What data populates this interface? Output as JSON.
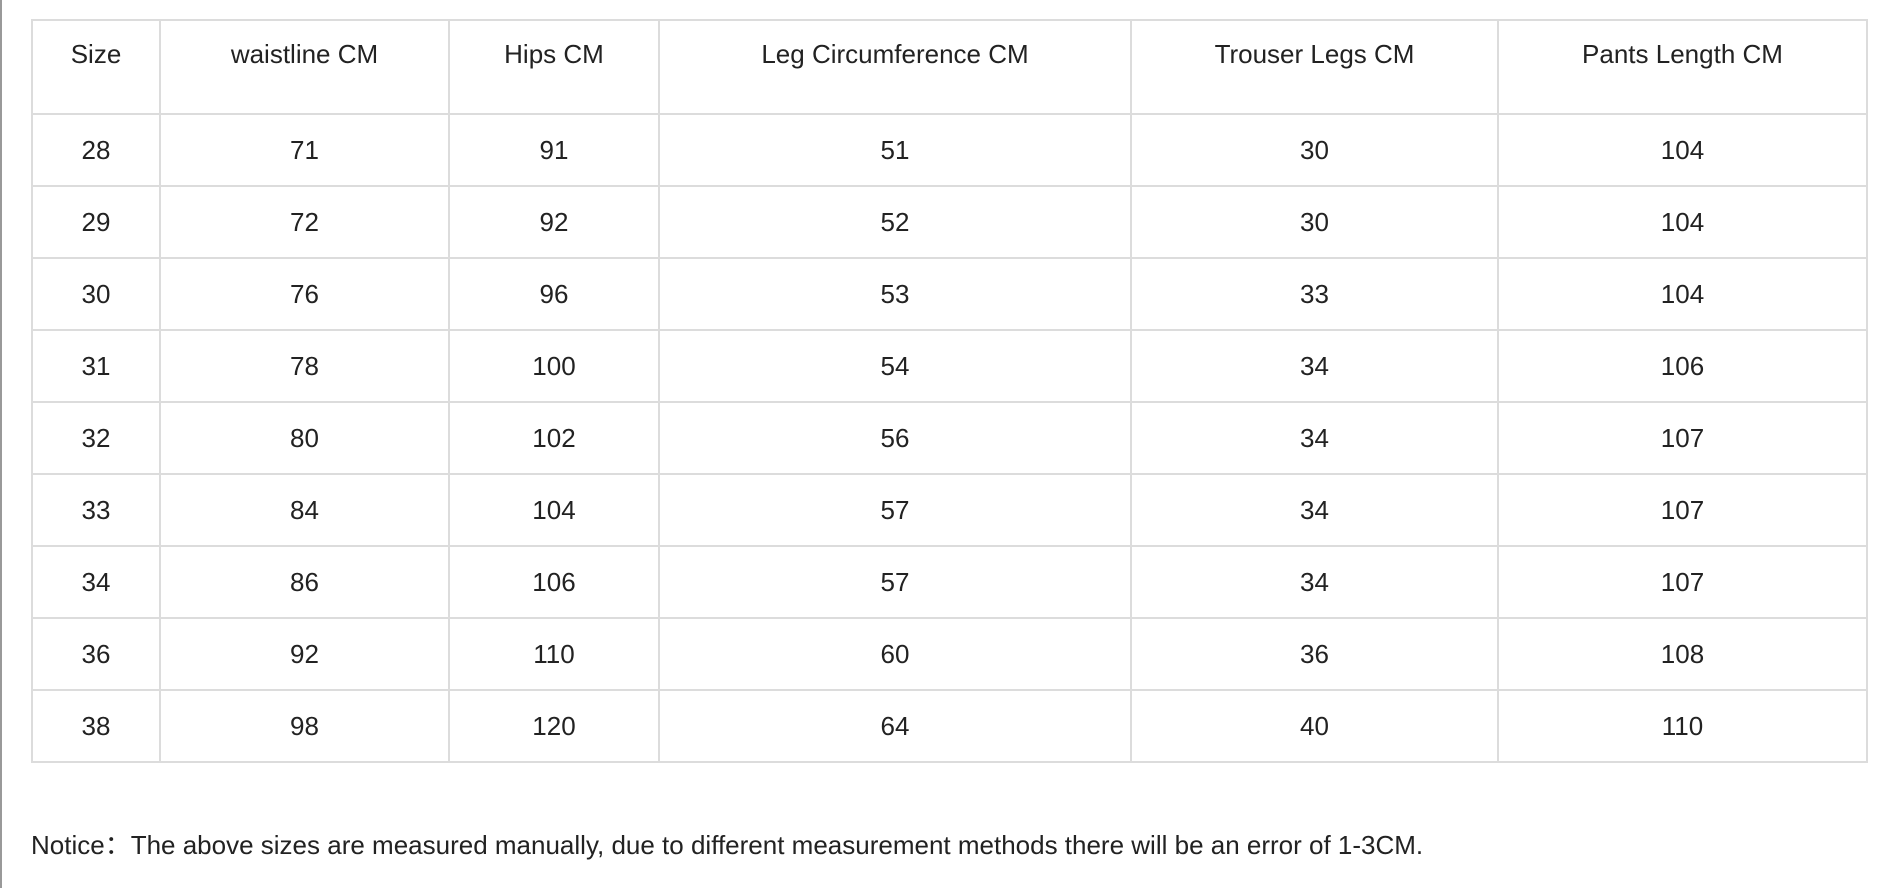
{
  "table": {
    "headers": [
      "Size",
      "waistline CM",
      "Hips CM",
      "Leg Circumference CM",
      "Trouser Legs CM",
      "Pants Length CM"
    ],
    "rows": [
      [
        "28",
        "71",
        "91",
        "51",
        "30",
        "104"
      ],
      [
        "29",
        "72",
        "92",
        "52",
        "30",
        "104"
      ],
      [
        "30",
        "76",
        "96",
        "53",
        "33",
        "104"
      ],
      [
        "31",
        "78",
        "100",
        "54",
        "34",
        "106"
      ],
      [
        "32",
        "80",
        "102",
        "56",
        "34",
        "107"
      ],
      [
        "33",
        "84",
        "104",
        "57",
        "34",
        "107"
      ],
      [
        "34",
        "86",
        "106",
        "57",
        "34",
        "107"
      ],
      [
        "36",
        "92",
        "110",
        "60",
        "36",
        "108"
      ],
      [
        "38",
        "98",
        "120",
        "64",
        "40",
        "110"
      ]
    ]
  },
  "notice": "Notice：The above sizes are measured manually, due to different measurement methods there will be an error of 1-3CM."
}
